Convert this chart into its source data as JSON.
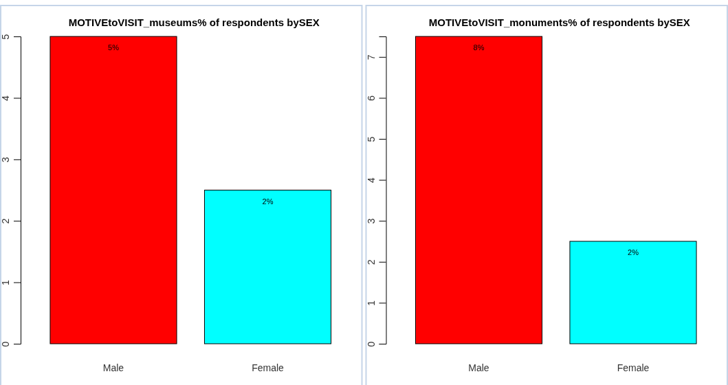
{
  "chart_data": [
    {
      "type": "bar",
      "title": "MOTIVEtoVISIT_museums% of respondents bySEX",
      "categories": [
        "Male",
        "Female"
      ],
      "values": [
        5,
        2.5
      ],
      "colors": [
        "#ff0000",
        "#00ffff"
      ],
      "value_labels": [
        "5%",
        "2%"
      ],
      "ylim": [
        0,
        5
      ],
      "yticks": [
        0,
        1,
        2,
        3,
        4,
        5
      ],
      "grid": false
    },
    {
      "type": "bar",
      "title": "MOTIVEtoVISIT_monuments% of respondents bySEX",
      "categories": [
        "Male",
        "Female"
      ],
      "values": [
        7.5,
        2.5
      ],
      "colors": [
        "#ff0000",
        "#00ffff"
      ],
      "value_labels": [
        "8%",
        "2%"
      ],
      "ylim": [
        0,
        7.5
      ],
      "yticks": [
        0,
        1,
        2,
        3,
        4,
        5,
        6,
        7
      ],
      "grid": false
    }
  ]
}
